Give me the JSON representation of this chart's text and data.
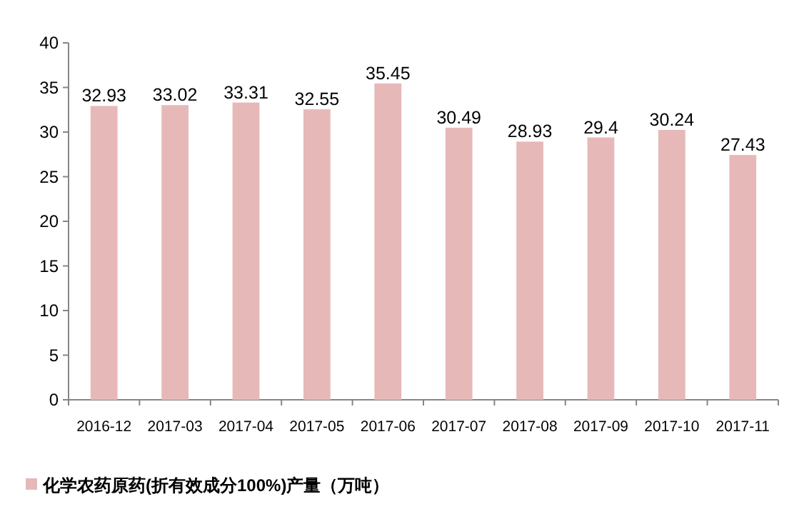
{
  "chart_data": {
    "type": "bar",
    "categories": [
      "2016-12",
      "2017-03",
      "2017-04",
      "2017-05",
      "2017-06",
      "2017-07",
      "2017-08",
      "2017-09",
      "2017-10",
      "2017-11"
    ],
    "series": [
      {
        "name": "化学农药原药(折有效成分100%)产量（万吨）",
        "color": "#e6b9b8",
        "values": [
          32.93,
          33.02,
          33.31,
          32.55,
          35.45,
          30.49,
          28.93,
          29.4,
          30.24,
          27.43
        ]
      }
    ],
    "ylim": [
      0,
      40
    ],
    "yticks": [
      0,
      5,
      10,
      15,
      20,
      25,
      30,
      35,
      40
    ],
    "data_labels": true,
    "legend": "bottom",
    "grid": false
  }
}
